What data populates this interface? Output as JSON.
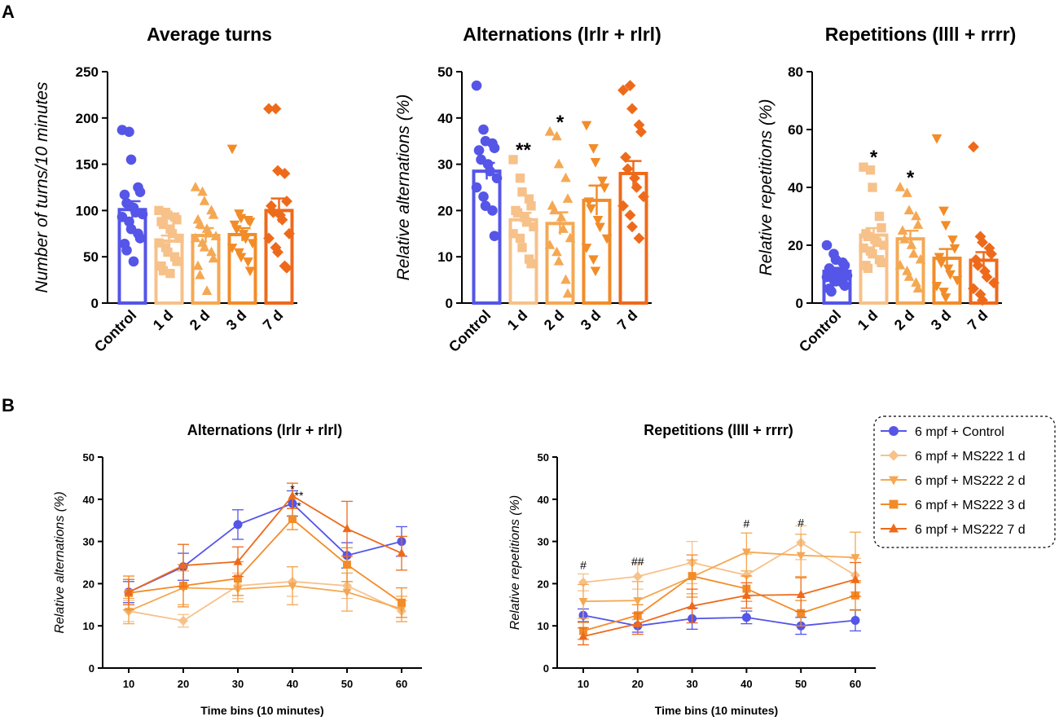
{
  "panel_labels": [
    "A",
    "B"
  ],
  "colors": {
    "Control": "#5555e8",
    "1 d": "#f7c18a",
    "2 d": "#f5a853",
    "3 d": "#f28c28",
    "7 d": "#ee6a1b"
  },
  "chart_data": [
    {
      "type": "bar",
      "title": "Average turns",
      "xlabel": "",
      "ylabel": "Number of turns/10 minutes",
      "ylim": [
        0,
        250
      ],
      "yticks": [
        0,
        50,
        100,
        150,
        200,
        250
      ],
      "categories": [
        "Control",
        "1 d",
        "2 d",
        "3 d",
        "7 d"
      ],
      "values": [
        101,
        67,
        73,
        74,
        100
      ],
      "sem": [
        9,
        6,
        8,
        7,
        13
      ],
      "markers": [
        "circle",
        "square",
        "triangle-up",
        "triangle-down",
        "diamond"
      ],
      "points": [
        [
          187,
          185,
          155,
          125,
          120,
          117,
          108,
          103,
          98,
          96,
          93,
          88,
          80,
          75,
          70,
          64,
          57,
          45
        ],
        [
          100,
          98,
          95,
          93,
          90,
          88,
          85,
          80,
          75,
          70,
          65,
          60,
          55,
          50,
          45,
          40,
          35,
          32
        ],
        [
          125,
          120,
          110,
          100,
          95,
          90,
          85,
          80,
          75,
          72,
          70,
          65,
          60,
          55,
          48,
          40,
          30,
          13
        ],
        [
          167,
          97,
          92,
          90,
          88,
          85,
          80,
          75,
          70,
          65,
          60,
          55,
          50,
          45,
          35
        ],
        [
          210,
          210,
          143,
          140,
          110,
          105,
          98,
          95,
          90,
          75,
          70,
          60,
          55,
          40,
          38
        ]
      ],
      "significance": [
        "",
        "",
        "",
        "",
        ""
      ]
    },
    {
      "type": "bar",
      "title": "Alternations (lrlr + rlrl)",
      "xlabel": "",
      "ylabel": "Relative alternations (%)",
      "ylim": [
        0,
        50
      ],
      "yticks": [
        0,
        10,
        20,
        30,
        40,
        50
      ],
      "categories": [
        "Control",
        "1 d",
        "2 d",
        "3 d",
        "7 d"
      ],
      "values": [
        28.5,
        18,
        17.2,
        22.2,
        28
      ],
      "sem": [
        1.8,
        1.5,
        2.4,
        3.2,
        2.7
      ],
      "markers": [
        "circle",
        "square",
        "triangle-up",
        "triangle-down",
        "diamond"
      ],
      "points": [
        [
          47,
          37.5,
          35,
          34.5,
          33.5,
          33,
          31,
          30,
          28.5,
          27,
          25,
          23,
          21,
          20,
          14.5
        ],
        [
          31,
          27,
          24,
          22.5,
          21,
          20,
          19.5,
          18.5,
          17.5,
          16.5,
          15,
          14,
          12,
          9.5,
          8.5
        ],
        [
          37,
          36,
          30,
          27,
          22.5,
          21,
          20,
          18.5,
          16,
          14,
          12.5,
          11,
          9,
          5,
          2
        ],
        [
          38.5,
          33.5,
          30.5,
          26.5,
          25,
          22,
          20.5,
          18,
          16.5,
          14,
          12,
          9.5,
          7
        ],
        [
          46,
          47,
          42,
          38.5,
          37,
          31.5,
          29,
          27,
          25,
          23,
          21,
          19,
          16.5,
          14
        ]
      ],
      "significance": [
        "",
        "**",
        "*",
        "",
        ""
      ]
    },
    {
      "type": "bar",
      "title": "Repetitions (llll + rrrr)",
      "xlabel": "",
      "ylabel": "Relative repetitions (%)",
      "ylim": [
        0,
        80
      ],
      "yticks": [
        0,
        20,
        40,
        60,
        80
      ],
      "categories": [
        "Control",
        "1 d",
        "2 d",
        "3 d",
        "7 d"
      ],
      "values": [
        11,
        23.5,
        22.2,
        15.5,
        14.8
      ],
      "sem": [
        1.2,
        2.4,
        2.8,
        3.2,
        2.8
      ],
      "markers": [
        "circle",
        "square",
        "triangle-up",
        "triangle-down",
        "diamond"
      ],
      "points": [
        [
          20,
          17,
          15,
          14,
          13,
          12,
          11,
          10.5,
          10,
          9.5,
          9,
          8,
          7.5,
          7,
          6,
          5,
          4
        ],
        [
          47,
          46,
          40,
          30,
          26,
          24,
          23,
          22,
          21,
          20,
          19,
          18,
          17,
          15,
          14,
          13,
          12
        ],
        [
          40,
          38,
          32,
          30,
          27,
          25,
          22,
          20,
          17,
          15,
          13,
          11,
          9,
          7,
          5
        ],
        [
          57,
          32,
          27,
          22,
          19,
          16,
          14,
          12,
          10,
          8,
          6,
          4,
          2
        ],
        [
          54,
          23,
          21,
          19,
          17,
          15,
          13,
          11,
          9,
          7,
          5,
          3,
          1
        ]
      ],
      "significance": [
        "",
        "*",
        "*",
        "",
        ""
      ]
    },
    {
      "type": "line",
      "title": "Alternations (lrlr + rlrl)",
      "xlabel": "Time bins (10 minutes)",
      "ylabel": "Relative alternations (%)",
      "ylim": [
        0,
        50
      ],
      "yticks": [
        0,
        10,
        20,
        30,
        40,
        50
      ],
      "x": [
        10,
        20,
        30,
        40,
        50,
        60
      ],
      "series": [
        {
          "name": "6 mpf + Control",
          "group": "Control",
          "marker": "circle",
          "values": [
            18,
            24,
            34,
            39,
            26.7,
            30
          ],
          "err": [
            2.5,
            3.2,
            3.5,
            3,
            3,
            3.5
          ]
        },
        {
          "name": "6 mpf + MS222 1 d",
          "group": "1 d",
          "marker": "diamond",
          "values": [
            13.5,
            11.2,
            19.5,
            20.5,
            19.5,
            13.5
          ],
          "err": [
            2.5,
            1.5,
            3,
            3.5,
            3,
            2.5
          ]
        },
        {
          "name": "6 mpf + MS222 2 d",
          "group": "2 d",
          "marker": "triangle-down",
          "values": [
            13.5,
            19,
            18.7,
            19.5,
            18,
            14
          ],
          "err": [
            3,
            4,
            3,
            4.5,
            4.5,
            3
          ]
        },
        {
          "name": "6 mpf + MS222 3 d",
          "group": "3 d",
          "marker": "square",
          "values": [
            17.8,
            19.5,
            21.2,
            35.3,
            24.5,
            15.5
          ],
          "err": [
            4,
            5,
            4,
            2.5,
            4,
            3.5
          ]
        },
        {
          "name": "6 mpf + MS222 7 d",
          "group": "7 d",
          "marker": "triangle-up",
          "values": [
            18,
            24.3,
            25.2,
            40.8,
            33,
            27.2
          ],
          "err": [
            3,
            5,
            3.5,
            3,
            6.5,
            4
          ]
        }
      ],
      "annotations": [
        {
          "x": 40,
          "y": 41.5,
          "text": "*"
        },
        {
          "x": 40,
          "y": 40,
          "text": "**"
        },
        {
          "x": 40,
          "y": 37.5,
          "text": "*"
        }
      ]
    },
    {
      "type": "line",
      "title": "Repetitions (llll + rrrr)",
      "xlabel": "Time bins (10 minutes)",
      "ylabel": "Relative repetitions (%)",
      "ylim": [
        0,
        50
      ],
      "yticks": [
        0,
        10,
        20,
        30,
        40,
        50
      ],
      "x": [
        10,
        20,
        30,
        40,
        50,
        60
      ],
      "series": [
        {
          "name": "6 mpf + Control",
          "group": "Control",
          "marker": "circle",
          "values": [
            12.5,
            10,
            11.7,
            12,
            10,
            11.3
          ],
          "err": [
            1.5,
            1.5,
            2.5,
            1.5,
            2,
            2.5
          ]
        },
        {
          "name": "6 mpf + MS222 1 d",
          "group": "1 d",
          "marker": "diamond",
          "values": [
            20.3,
            21.7,
            25,
            22,
            29.7,
            22
          ],
          "err": [
            2,
            3,
            5,
            5,
            4,
            4
          ]
        },
        {
          "name": "6 mpf + MS222 2 d",
          "group": "2 d",
          "marker": "triangle-down",
          "values": [
            15.8,
            16,
            21.6,
            27.5,
            26.7,
            26.2
          ],
          "err": [
            4,
            4.5,
            4,
            4.5,
            5,
            6
          ]
        },
        {
          "name": "6 mpf + MS222 3 d",
          "group": "3 d",
          "marker": "square",
          "values": [
            8.8,
            12.5,
            21.8,
            18.8,
            13,
            17.2
          ],
          "err": [
            2,
            2.5,
            5,
            3,
            3,
            3.5
          ]
        },
        {
          "name": "6 mpf + MS222 7 d",
          "group": "7 d",
          "marker": "triangle-up",
          "values": [
            7.5,
            10.5,
            14.7,
            17.2,
            17.4,
            21
          ],
          "err": [
            2,
            2.5,
            4,
            3,
            4,
            4
          ]
        }
      ],
      "annotations": [
        {
          "x": 10,
          "y": 23.5,
          "text": "#"
        },
        {
          "x": 20,
          "y": 24.3,
          "text": "##"
        },
        {
          "x": 40,
          "y": 33.3,
          "text": "#"
        },
        {
          "x": 50,
          "y": 33.5,
          "text": "#"
        }
      ]
    }
  ]
}
